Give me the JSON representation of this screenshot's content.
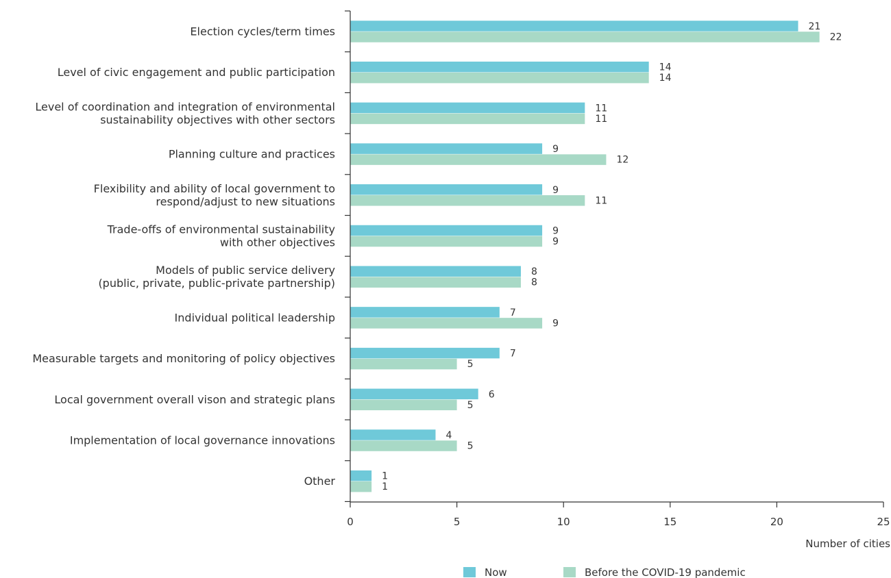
{
  "chart_data": {
    "type": "bar",
    "orientation": "horizontal",
    "categories": [
      [
        "Election cycles/term times"
      ],
      [
        "Level of civic engagement and public participation"
      ],
      [
        "Level of coordination and integration of environmental",
        "sustainability objectives with other sectors"
      ],
      [
        "Planning culture and practices"
      ],
      [
        "Flexibility and ability of local government to",
        "respond/adjust to new situations"
      ],
      [
        "Trade-offs of environmental sustainability",
        "with other objectives"
      ],
      [
        "Models of public service delivery",
        "(public, private, public-private partnership)"
      ],
      [
        "Individual political leadership"
      ],
      [
        "Measurable targets and monitoring of policy objectives"
      ],
      [
        "Local government overall vison and strategic plans"
      ],
      [
        "Implementation of local governance innovations"
      ],
      [
        "Other"
      ]
    ],
    "series": [
      {
        "name": "Now",
        "color": "#6fc9d9",
        "values": [
          21,
          14,
          11,
          9,
          9,
          9,
          8,
          7,
          7,
          6,
          4,
          1
        ]
      },
      {
        "name": "Before the COVID-19 pandemic",
        "color": "#a8d9c6",
        "values": [
          22,
          14,
          11,
          12,
          11,
          9,
          8,
          9,
          5,
          5,
          5,
          1
        ]
      }
    ],
    "xlim": [
      0,
      25
    ],
    "xticks": [
      0,
      5,
      10,
      15,
      20,
      25
    ],
    "xlabel": "Number of cities",
    "ylabel": "",
    "title": "",
    "grid": false,
    "legend": "bottom-right",
    "data_labels": true
  }
}
